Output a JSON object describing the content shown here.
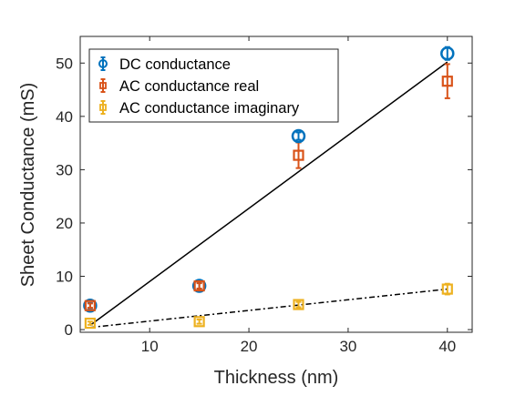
{
  "chart_data": {
    "type": "scatter",
    "xlabel": "Thickness (nm)",
    "ylabel": "Sheet Conductance (mS)",
    "xlim": [
      3,
      42.5
    ],
    "ylim": [
      -0.5,
      55
    ],
    "x_ticks": [
      10,
      20,
      30,
      40
    ],
    "y_ticks": [
      0,
      10,
      20,
      30,
      40,
      50
    ],
    "grid": false,
    "legend_position": "top-left",
    "series": [
      {
        "name": "DC conductance",
        "marker": "circle",
        "color": "#0072BD",
        "points": [
          {
            "x": 4,
            "y": 4.5,
            "err": 0.5
          },
          {
            "x": 15,
            "y": 8.2,
            "err": 0.6
          },
          {
            "x": 25,
            "y": 36.3,
            "err": 0.7
          },
          {
            "x": 40,
            "y": 51.8,
            "err": 1.2
          }
        ]
      },
      {
        "name": "AC conductance real",
        "marker": "square",
        "color": "#D95319",
        "points": [
          {
            "x": 4,
            "y": 4.5,
            "err": 0.4
          },
          {
            "x": 15,
            "y": 8.2,
            "err": 0.5
          },
          {
            "x": 25,
            "y": 32.7,
            "err": 2.4
          },
          {
            "x": 40,
            "y": 46.6,
            "err": 3.2
          }
        ]
      },
      {
        "name": "AC conductance imaginary",
        "marker": "square",
        "color": "#EDB120",
        "points": [
          {
            "x": 4,
            "y": 1.2,
            "err": 0.3
          },
          {
            "x": 15,
            "y": 1.5,
            "err": 0.4
          },
          {
            "x": 25,
            "y": 4.7,
            "err": 0.5
          },
          {
            "x": 40,
            "y": 7.6,
            "err": 1.0
          }
        ]
      }
    ],
    "fit_lines": [
      {
        "style": "solid",
        "color": "#000000",
        "from": [
          4,
          0.8
        ],
        "to": [
          40,
          50.2
        ]
      },
      {
        "style": "dashdot",
        "color": "#000000",
        "from": [
          4,
          0.4
        ],
        "to": [
          40,
          7.6
        ]
      }
    ]
  }
}
